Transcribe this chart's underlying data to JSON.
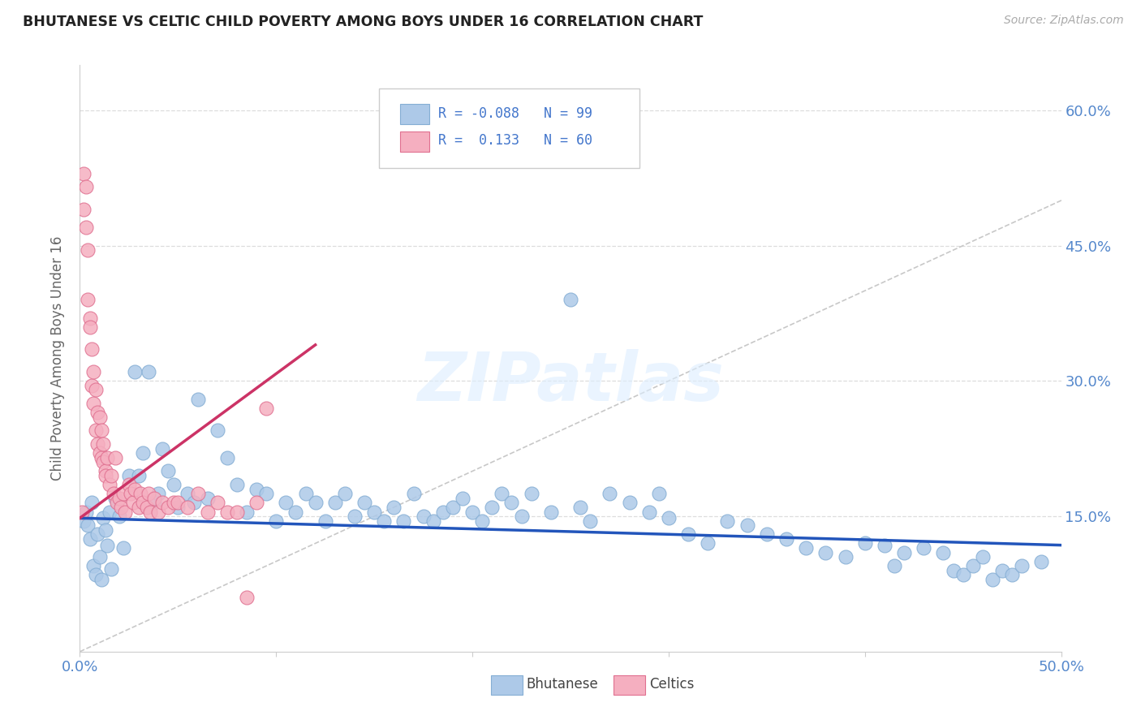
{
  "title": "BHUTANESE VS CELTIC CHILD POVERTY AMONG BOYS UNDER 16 CORRELATION CHART",
  "source": "Source: ZipAtlas.com",
  "ylabel": "Child Poverty Among Boys Under 16",
  "ytick_labels": [
    "15.0%",
    "30.0%",
    "45.0%",
    "60.0%"
  ],
  "ytick_values": [
    0.15,
    0.3,
    0.45,
    0.6
  ],
  "xlim": [
    0.0,
    0.5
  ],
  "ylim": [
    0.0,
    0.65
  ],
  "bhutanese_color": "#adc9e8",
  "celtics_color": "#f5afc0",
  "bhutanese_edge": "#85aed4",
  "celtics_edge": "#e07090",
  "trend_blue": "#2255bb",
  "trend_pink": "#cc3366",
  "diagonal_color": "#c8c8c8",
  "R_blue": -0.088,
  "N_blue": 99,
  "R_pink": 0.133,
  "N_pink": 60,
  "legend_label_blue": "Bhutanese",
  "legend_label_pink": "Celtics",
  "watermark": "ZIPatlas",
  "background_color": "#ffffff",
  "grid_color": "#dddddd",
  "blue_trend_x": [
    0.0,
    0.5
  ],
  "blue_trend_y": [
    0.148,
    0.118
  ],
  "pink_trend_x": [
    0.0,
    0.12
  ],
  "pink_trend_y": [
    0.148,
    0.34
  ],
  "bhutanese_x": [
    0.002,
    0.003,
    0.004,
    0.005,
    0.006,
    0.007,
    0.008,
    0.009,
    0.01,
    0.011,
    0.012,
    0.013,
    0.014,
    0.015,
    0.016,
    0.018,
    0.02,
    0.022,
    0.025,
    0.028,
    0.03,
    0.032,
    0.035,
    0.038,
    0.04,
    0.042,
    0.045,
    0.048,
    0.05,
    0.055,
    0.058,
    0.06,
    0.065,
    0.07,
    0.075,
    0.08,
    0.085,
    0.09,
    0.095,
    0.1,
    0.105,
    0.11,
    0.115,
    0.12,
    0.125,
    0.13,
    0.135,
    0.14,
    0.145,
    0.15,
    0.155,
    0.16,
    0.165,
    0.17,
    0.175,
    0.18,
    0.185,
    0.19,
    0.195,
    0.2,
    0.205,
    0.21,
    0.215,
    0.22,
    0.225,
    0.23,
    0.24,
    0.25,
    0.255,
    0.26,
    0.27,
    0.28,
    0.29,
    0.295,
    0.3,
    0.31,
    0.32,
    0.33,
    0.34,
    0.35,
    0.36,
    0.37,
    0.38,
    0.39,
    0.4,
    0.41,
    0.415,
    0.42,
    0.43,
    0.44,
    0.445,
    0.45,
    0.455,
    0.46,
    0.465,
    0.47,
    0.475,
    0.48,
    0.49
  ],
  "bhutanese_y": [
    0.145,
    0.155,
    0.14,
    0.125,
    0.165,
    0.095,
    0.085,
    0.13,
    0.105,
    0.08,
    0.148,
    0.135,
    0.118,
    0.155,
    0.092,
    0.17,
    0.15,
    0.115,
    0.195,
    0.31,
    0.195,
    0.22,
    0.31,
    0.165,
    0.175,
    0.225,
    0.2,
    0.185,
    0.16,
    0.175,
    0.165,
    0.28,
    0.17,
    0.245,
    0.215,
    0.185,
    0.155,
    0.18,
    0.175,
    0.145,
    0.165,
    0.155,
    0.175,
    0.165,
    0.145,
    0.165,
    0.175,
    0.15,
    0.165,
    0.155,
    0.145,
    0.16,
    0.145,
    0.175,
    0.15,
    0.145,
    0.155,
    0.16,
    0.17,
    0.155,
    0.145,
    0.16,
    0.175,
    0.165,
    0.15,
    0.175,
    0.155,
    0.39,
    0.16,
    0.145,
    0.175,
    0.165,
    0.155,
    0.175,
    0.148,
    0.13,
    0.12,
    0.145,
    0.14,
    0.13,
    0.125,
    0.115,
    0.11,
    0.105,
    0.12,
    0.118,
    0.095,
    0.11,
    0.115,
    0.11,
    0.09,
    0.085,
    0.095,
    0.105,
    0.08,
    0.09,
    0.085,
    0.095,
    0.1
  ],
  "celtics_x": [
    0.001,
    0.002,
    0.002,
    0.003,
    0.003,
    0.004,
    0.004,
    0.005,
    0.005,
    0.006,
    0.006,
    0.007,
    0.007,
    0.008,
    0.008,
    0.009,
    0.009,
    0.01,
    0.01,
    0.011,
    0.011,
    0.012,
    0.012,
    0.013,
    0.013,
    0.014,
    0.015,
    0.016,
    0.017,
    0.018,
    0.019,
    0.02,
    0.021,
    0.022,
    0.023,
    0.025,
    0.026,
    0.027,
    0.028,
    0.03,
    0.031,
    0.032,
    0.034,
    0.035,
    0.036,
    0.038,
    0.04,
    0.042,
    0.045,
    0.048,
    0.05,
    0.055,
    0.06,
    0.065,
    0.07,
    0.075,
    0.08,
    0.085,
    0.09,
    0.095
  ],
  "celtics_y": [
    0.155,
    0.53,
    0.49,
    0.515,
    0.47,
    0.445,
    0.39,
    0.37,
    0.36,
    0.335,
    0.295,
    0.31,
    0.275,
    0.29,
    0.245,
    0.265,
    0.23,
    0.26,
    0.22,
    0.245,
    0.215,
    0.23,
    0.21,
    0.2,
    0.195,
    0.215,
    0.185,
    0.195,
    0.175,
    0.215,
    0.165,
    0.17,
    0.16,
    0.175,
    0.155,
    0.185,
    0.175,
    0.165,
    0.18,
    0.16,
    0.175,
    0.165,
    0.16,
    0.175,
    0.155,
    0.17,
    0.155,
    0.165,
    0.16,
    0.165,
    0.165,
    0.16,
    0.175,
    0.155,
    0.165,
    0.155,
    0.155,
    0.06,
    0.165,
    0.27
  ]
}
